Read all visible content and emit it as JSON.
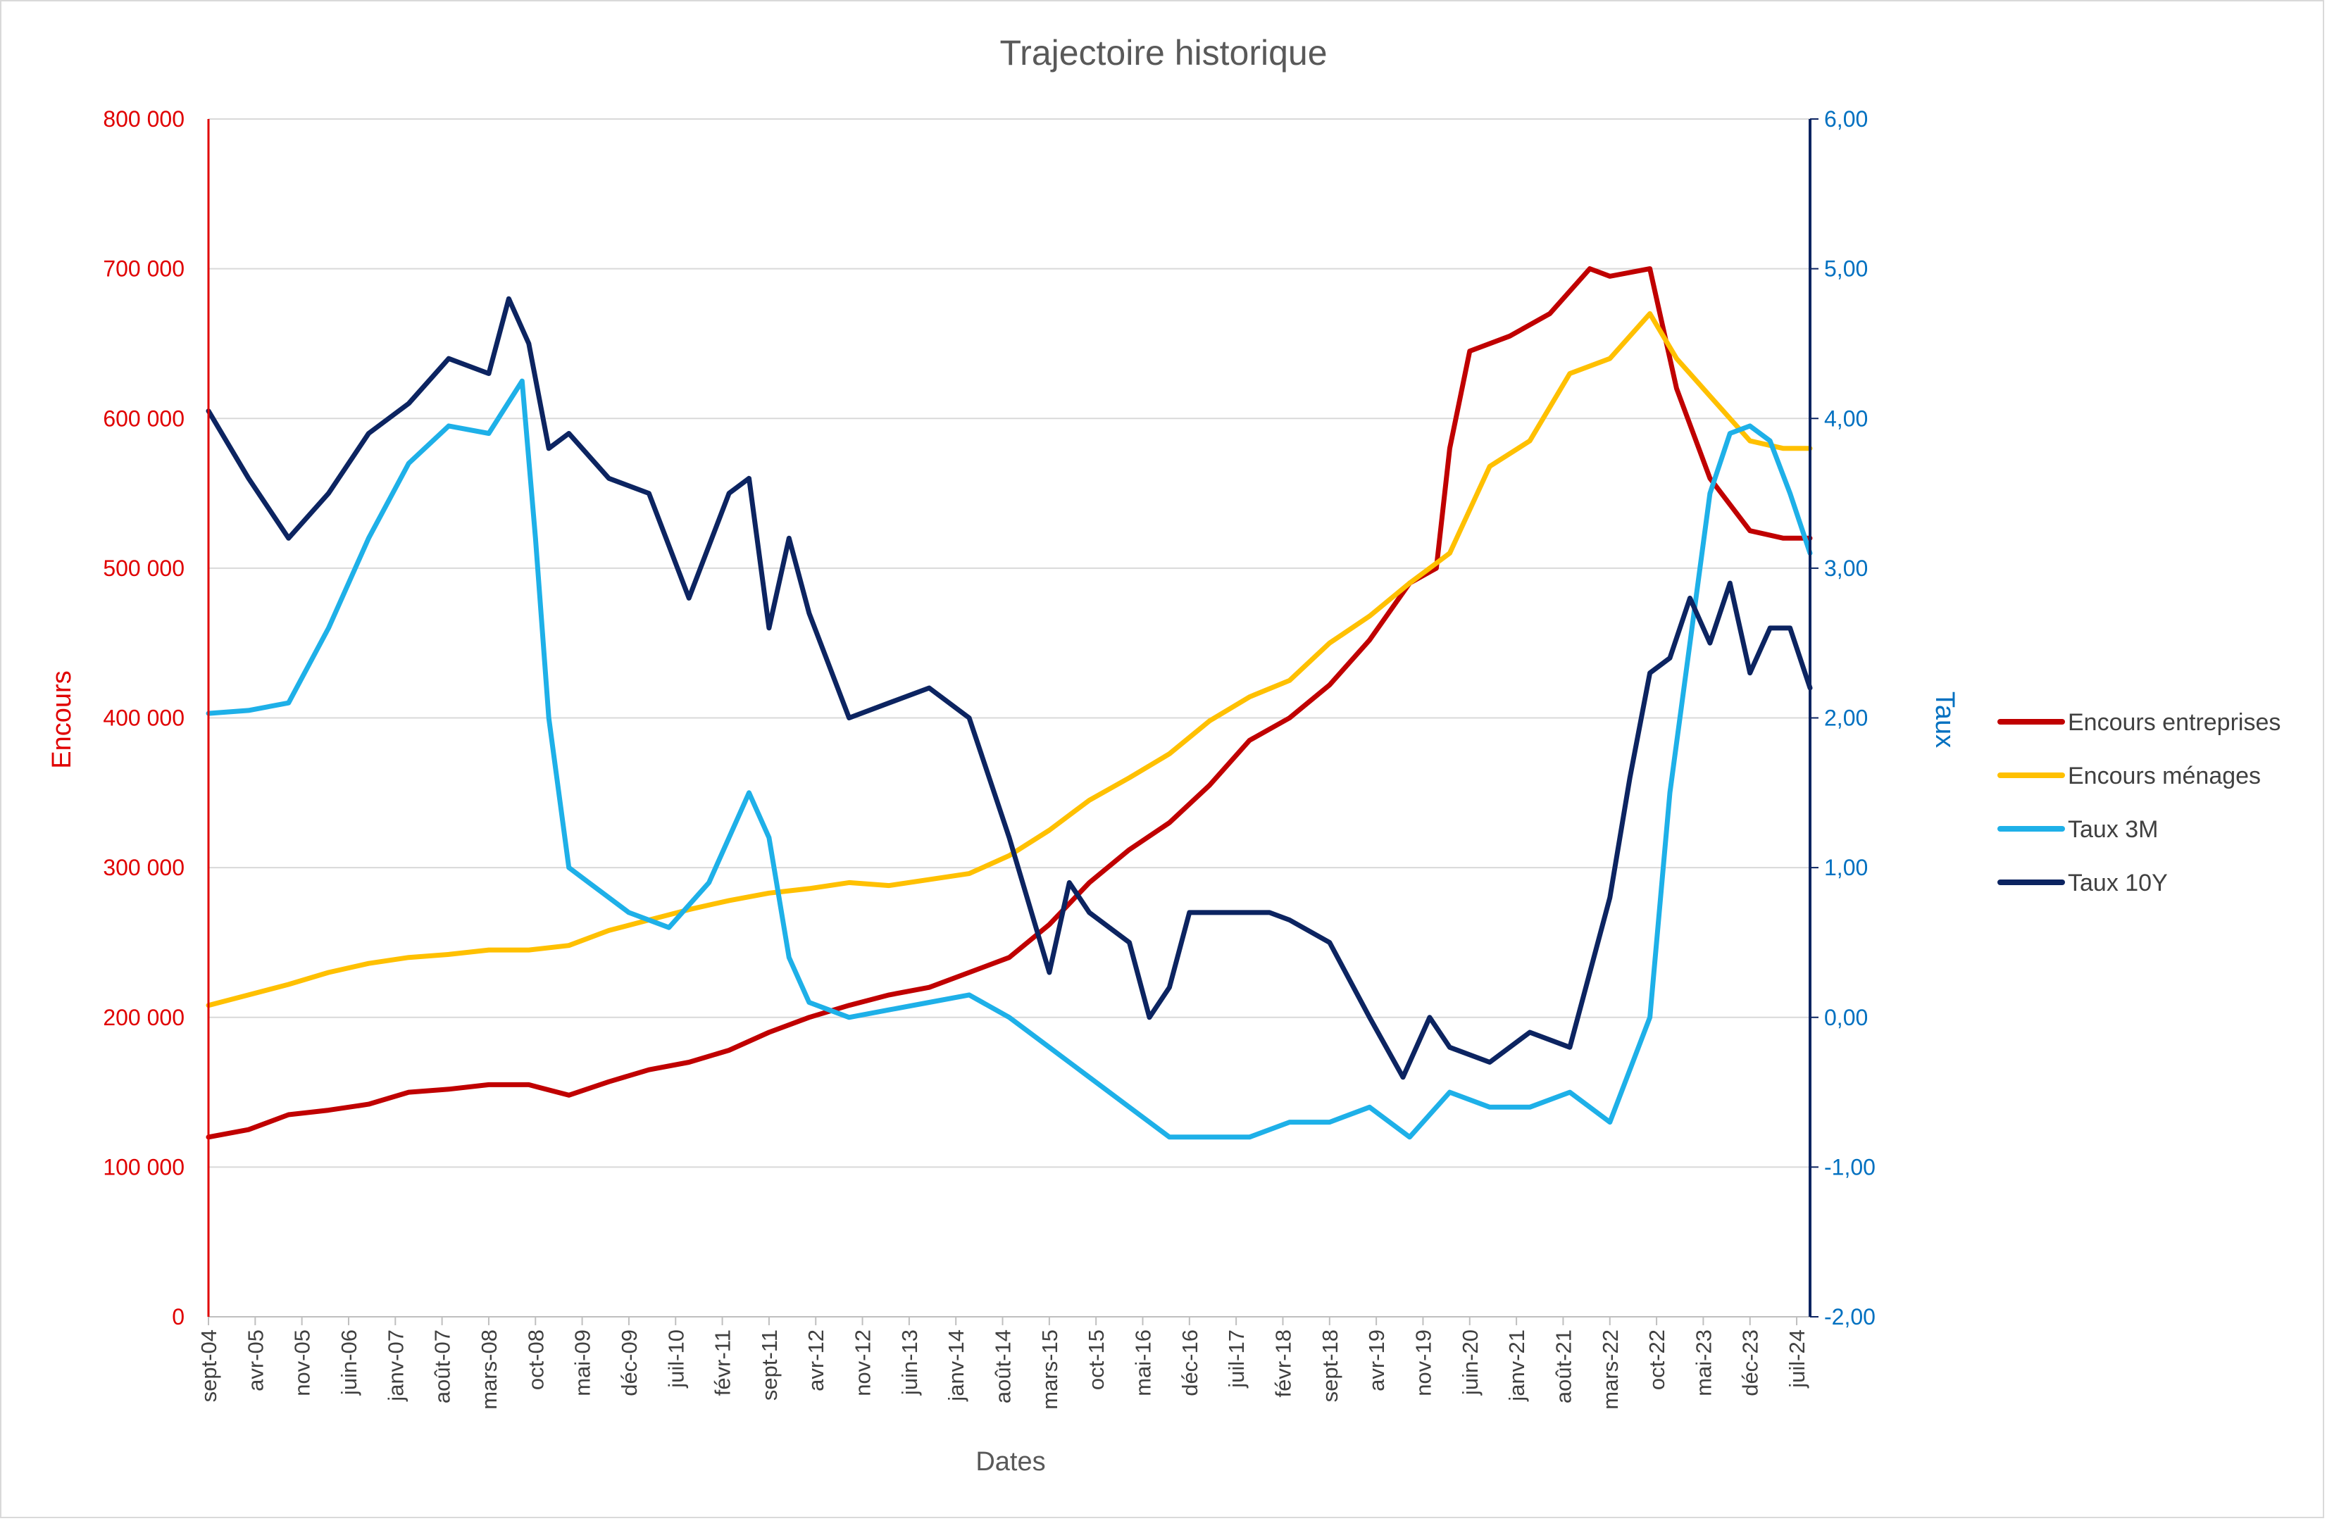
{
  "chart_data": {
    "type": "line",
    "title": "Trajectoire historique",
    "xlabel": "Dates",
    "ylabel_left": "Encours",
    "ylabel_right": "Taux",
    "ylim_left": [
      0,
      800000
    ],
    "ylim_right": [
      -2,
      6
    ],
    "yticks_left": [
      "0",
      "100 000",
      "200 000",
      "300 000",
      "400 000",
      "500 000",
      "600 000",
      "700 000",
      "800 000"
    ],
    "yticks_right": [
      "-2,00",
      "-1,00",
      "0,00",
      "1,00",
      "2,00",
      "3,00",
      "4,00",
      "5,00",
      "6,00"
    ],
    "x_start": "2004-09",
    "x_end": "2024-09",
    "x_tick_labels": [
      "sept-04",
      "avr-05",
      "nov-05",
      "juin-06",
      "janv-07",
      "août-07",
      "mars-08",
      "oct-08",
      "mai-09",
      "déc-09",
      "juil-10",
      "févr-11",
      "sept-11",
      "avr-12",
      "nov-12",
      "juin-13",
      "janv-14",
      "août-14",
      "mars-15",
      "oct-15",
      "mai-16",
      "déc-16",
      "juil-17",
      "févr-18",
      "sept-18",
      "avr-19",
      "nov-19",
      "juin-20",
      "janv-21",
      "août-21",
      "mars-22",
      "oct-22",
      "mai-23",
      "déc-23",
      "juil-24"
    ],
    "grid": true,
    "legend_position": "right",
    "series": [
      {
        "name": "Encours entreprises",
        "axis": "left",
        "color": "#c00000",
        "points": [
          [
            "2004-09",
            120000
          ],
          [
            "2005-03",
            125000
          ],
          [
            "2005-09",
            135000
          ],
          [
            "2006-03",
            138000
          ],
          [
            "2006-09",
            142000
          ],
          [
            "2007-03",
            150000
          ],
          [
            "2007-09",
            152000
          ],
          [
            "2008-03",
            155000
          ],
          [
            "2008-09",
            155000
          ],
          [
            "2009-03",
            148000
          ],
          [
            "2009-09",
            157000
          ],
          [
            "2010-03",
            165000
          ],
          [
            "2010-09",
            170000
          ],
          [
            "2011-03",
            178000
          ],
          [
            "2011-09",
            190000
          ],
          [
            "2012-03",
            200000
          ],
          [
            "2012-09",
            208000
          ],
          [
            "2013-03",
            215000
          ],
          [
            "2013-09",
            220000
          ],
          [
            "2014-03",
            230000
          ],
          [
            "2014-09",
            240000
          ],
          [
            "2015-03",
            262000
          ],
          [
            "2015-09",
            290000
          ],
          [
            "2016-03",
            312000
          ],
          [
            "2016-09",
            330000
          ],
          [
            "2017-03",
            355000
          ],
          [
            "2017-09",
            385000
          ],
          [
            "2018-03",
            400000
          ],
          [
            "2018-09",
            422000
          ],
          [
            "2019-03",
            452000
          ],
          [
            "2019-09",
            490000
          ],
          [
            "2020-01",
            500000
          ],
          [
            "2020-03",
            580000
          ],
          [
            "2020-06",
            645000
          ],
          [
            "2020-12",
            655000
          ],
          [
            "2021-06",
            670000
          ],
          [
            "2021-12",
            700000
          ],
          [
            "2022-03",
            695000
          ],
          [
            "2022-09",
            700000
          ],
          [
            "2023-01",
            620000
          ],
          [
            "2023-06",
            560000
          ],
          [
            "2023-12",
            525000
          ],
          [
            "2024-05",
            520000
          ],
          [
            "2024-09",
            520000
          ]
        ]
      },
      {
        "name": "Encours ménages",
        "axis": "left",
        "color": "#ffc000",
        "points": [
          [
            "2004-09",
            208000
          ],
          [
            "2005-03",
            215000
          ],
          [
            "2005-09",
            222000
          ],
          [
            "2006-03",
            230000
          ],
          [
            "2006-09",
            236000
          ],
          [
            "2007-03",
            240000
          ],
          [
            "2007-09",
            242000
          ],
          [
            "2008-03",
            245000
          ],
          [
            "2008-09",
            245000
          ],
          [
            "2009-03",
            248000
          ],
          [
            "2009-09",
            258000
          ],
          [
            "2010-03",
            265000
          ],
          [
            "2010-09",
            272000
          ],
          [
            "2011-03",
            278000
          ],
          [
            "2011-09",
            283000
          ],
          [
            "2012-03",
            286000
          ],
          [
            "2012-09",
            290000
          ],
          [
            "2013-03",
            288000
          ],
          [
            "2013-09",
            292000
          ],
          [
            "2014-03",
            296000
          ],
          [
            "2014-09",
            308000
          ],
          [
            "2015-03",
            325000
          ],
          [
            "2015-09",
            345000
          ],
          [
            "2016-03",
            360000
          ],
          [
            "2016-09",
            376000
          ],
          [
            "2017-03",
            398000
          ],
          [
            "2017-09",
            414000
          ],
          [
            "2018-03",
            425000
          ],
          [
            "2018-09",
            450000
          ],
          [
            "2019-03",
            468000
          ],
          [
            "2019-09",
            490000
          ],
          [
            "2020-03",
            510000
          ],
          [
            "2020-09",
            568000
          ],
          [
            "2021-03",
            585000
          ],
          [
            "2021-09",
            630000
          ],
          [
            "2022-03",
            640000
          ],
          [
            "2022-09",
            670000
          ],
          [
            "2023-01",
            640000
          ],
          [
            "2023-06",
            615000
          ],
          [
            "2023-12",
            585000
          ],
          [
            "2024-05",
            580000
          ],
          [
            "2024-09",
            580000
          ]
        ]
      },
      {
        "name": "Taux 3M",
        "axis": "right",
        "color": "#1eb0e8",
        "points": [
          [
            "2004-09",
            2.03
          ],
          [
            "2005-03",
            2.05
          ],
          [
            "2005-09",
            2.1
          ],
          [
            "2006-03",
            2.6
          ],
          [
            "2006-09",
            3.2
          ],
          [
            "2007-03",
            3.7
          ],
          [
            "2007-09",
            3.95
          ],
          [
            "2008-03",
            3.9
          ],
          [
            "2008-08",
            4.25
          ],
          [
            "2008-10",
            3.2
          ],
          [
            "2008-12",
            2.0
          ],
          [
            "2009-03",
            1.0
          ],
          [
            "2009-06",
            0.9
          ],
          [
            "2009-12",
            0.7
          ],
          [
            "2010-06",
            0.6
          ],
          [
            "2010-12",
            0.9
          ],
          [
            "2011-03",
            1.2
          ],
          [
            "2011-06",
            1.5
          ],
          [
            "2011-09",
            1.2
          ],
          [
            "2011-12",
            0.4
          ],
          [
            "2012-03",
            0.1
          ],
          [
            "2012-09",
            0.0
          ],
          [
            "2013-03",
            0.05
          ],
          [
            "2013-09",
            0.1
          ],
          [
            "2014-03",
            0.15
          ],
          [
            "2014-09",
            0.0
          ],
          [
            "2015-03",
            -0.2
          ],
          [
            "2015-09",
            -0.4
          ],
          [
            "2016-03",
            -0.6
          ],
          [
            "2016-09",
            -0.8
          ],
          [
            "2017-03",
            -0.8
          ],
          [
            "2017-09",
            -0.8
          ],
          [
            "2018-03",
            -0.7
          ],
          [
            "2018-09",
            -0.7
          ],
          [
            "2019-03",
            -0.6
          ],
          [
            "2019-09",
            -0.8
          ],
          [
            "2020-03",
            -0.5
          ],
          [
            "2020-09",
            -0.6
          ],
          [
            "2021-03",
            -0.6
          ],
          [
            "2021-09",
            -0.5
          ],
          [
            "2022-03",
            -0.7
          ],
          [
            "2022-09",
            0.0
          ],
          [
            "2022-12",
            1.5
          ],
          [
            "2023-03",
            2.5
          ],
          [
            "2023-06",
            3.5
          ],
          [
            "2023-09",
            3.9
          ],
          [
            "2023-12",
            3.95
          ],
          [
            "2024-03",
            3.85
          ],
          [
            "2024-06",
            3.5
          ],
          [
            "2024-09",
            3.1
          ]
        ]
      },
      {
        "name": "Taux 10Y",
        "axis": "right",
        "color": "#0c2461",
        "points": [
          [
            "2004-09",
            4.05
          ],
          [
            "2005-03",
            3.6
          ],
          [
            "2005-09",
            3.2
          ],
          [
            "2006-03",
            3.5
          ],
          [
            "2006-09",
            3.9
          ],
          [
            "2007-03",
            4.1
          ],
          [
            "2007-09",
            4.4
          ],
          [
            "2008-03",
            4.3
          ],
          [
            "2008-06",
            4.8
          ],
          [
            "2008-09",
            4.5
          ],
          [
            "2008-12",
            3.8
          ],
          [
            "2009-03",
            3.9
          ],
          [
            "2009-09",
            3.6
          ],
          [
            "2010-03",
            3.5
          ],
          [
            "2010-09",
            2.8
          ],
          [
            "2011-03",
            3.5
          ],
          [
            "2011-06",
            3.6
          ],
          [
            "2011-09",
            2.6
          ],
          [
            "2011-12",
            3.2
          ],
          [
            "2012-03",
            2.7
          ],
          [
            "2012-09",
            2.0
          ],
          [
            "2013-03",
            2.1
          ],
          [
            "2013-09",
            2.2
          ],
          [
            "2014-03",
            2.0
          ],
          [
            "2014-09",
            1.2
          ],
          [
            "2015-03",
            0.3
          ],
          [
            "2015-06",
            0.9
          ],
          [
            "2015-09",
            0.7
          ],
          [
            "2016-03",
            0.5
          ],
          [
            "2016-06",
            0.0
          ],
          [
            "2016-09",
            0.2
          ],
          [
            "2016-12",
            0.7
          ],
          [
            "2017-06",
            0.7
          ],
          [
            "2017-12",
            0.7
          ],
          [
            "2018-03",
            0.65
          ],
          [
            "2018-09",
            0.5
          ],
          [
            "2019-03",
            0.0
          ],
          [
            "2019-08",
            -0.4
          ],
          [
            "2019-12",
            0.0
          ],
          [
            "2020-03",
            -0.2
          ],
          [
            "2020-09",
            -0.3
          ],
          [
            "2021-03",
            -0.1
          ],
          [
            "2021-09",
            -0.2
          ],
          [
            "2022-03",
            0.8
          ],
          [
            "2022-06",
            1.6
          ],
          [
            "2022-09",
            2.3
          ],
          [
            "2022-12",
            2.4
          ],
          [
            "2023-03",
            2.8
          ],
          [
            "2023-06",
            2.5
          ],
          [
            "2023-09",
            2.9
          ],
          [
            "2023-12",
            2.3
          ],
          [
            "2024-03",
            2.6
          ],
          [
            "2024-06",
            2.6
          ],
          [
            "2024-09",
            2.2
          ]
        ]
      }
    ]
  }
}
